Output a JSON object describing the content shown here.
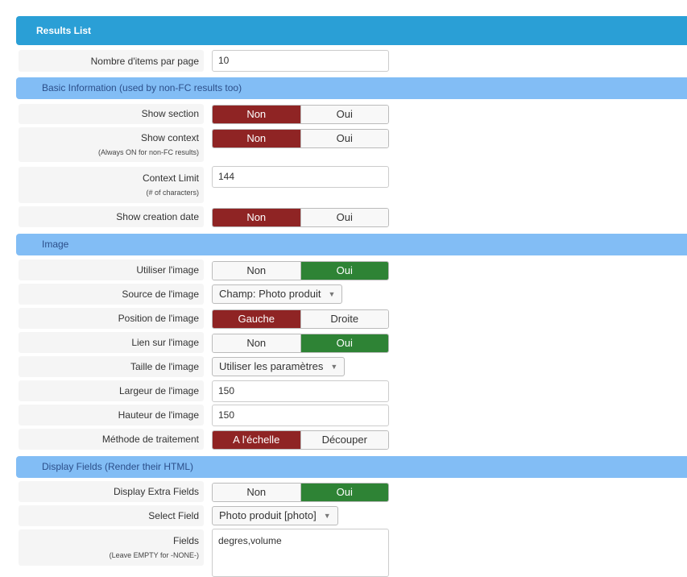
{
  "header": {
    "title": "Results List"
  },
  "items_per_page": {
    "label": "Nombre d'items par page",
    "value": "10"
  },
  "basic": {
    "title": "Basic Information (used by non-FC results too)",
    "show_section": {
      "label": "Show section",
      "options": [
        "Non",
        "Oui"
      ],
      "selected": "Non"
    },
    "show_context": {
      "label": "Show context",
      "sublabel": "(Always ON for non-FC results)",
      "options": [
        "Non",
        "Oui"
      ],
      "selected": "Non"
    },
    "context_limit": {
      "label": "Context Limit",
      "sublabel": "(# of characters)",
      "value": "144"
    },
    "show_creation_date": {
      "label": "Show creation date",
      "options": [
        "Non",
        "Oui"
      ],
      "selected": "Non"
    }
  },
  "image": {
    "title": "Image",
    "use_image": {
      "label": "Utiliser l'image",
      "options": [
        "Non",
        "Oui"
      ],
      "selected": "Oui"
    },
    "source": {
      "label": "Source de l'image",
      "value": "Champ: Photo produit"
    },
    "position": {
      "label": "Position de l'image",
      "options": [
        "Gauche",
        "Droite"
      ],
      "selected": "Gauche"
    },
    "link": {
      "label": "Lien sur l'image",
      "options": [
        "Non",
        "Oui"
      ],
      "selected": "Oui"
    },
    "size": {
      "label": "Taille de l'image",
      "value": "Utiliser les paramètres"
    },
    "width": {
      "label": "Largeur de l'image",
      "value": "150"
    },
    "height": {
      "label": "Hauteur de l'image",
      "value": "150"
    },
    "method": {
      "label": "Méthode de traitement",
      "options": [
        "A l'échelle",
        "Découper"
      ],
      "selected": "A l'échelle"
    }
  },
  "display": {
    "title": "Display Fields (Render their HTML)",
    "extra_fields": {
      "label": "Display Extra Fields",
      "options": [
        "Non",
        "Oui"
      ],
      "selected": "Oui"
    },
    "select_field": {
      "label": "Select Field",
      "value": "Photo produit [photo]"
    },
    "fields": {
      "label": "Fields",
      "sublabel": "(Leave EMPTY for -NONE-)",
      "value": "degres,volume"
    }
  },
  "colors": {
    "header": "#2a9fd6",
    "section": "#82bdf5",
    "no_active": "#8f2424",
    "yes_active": "#2e8335"
  }
}
